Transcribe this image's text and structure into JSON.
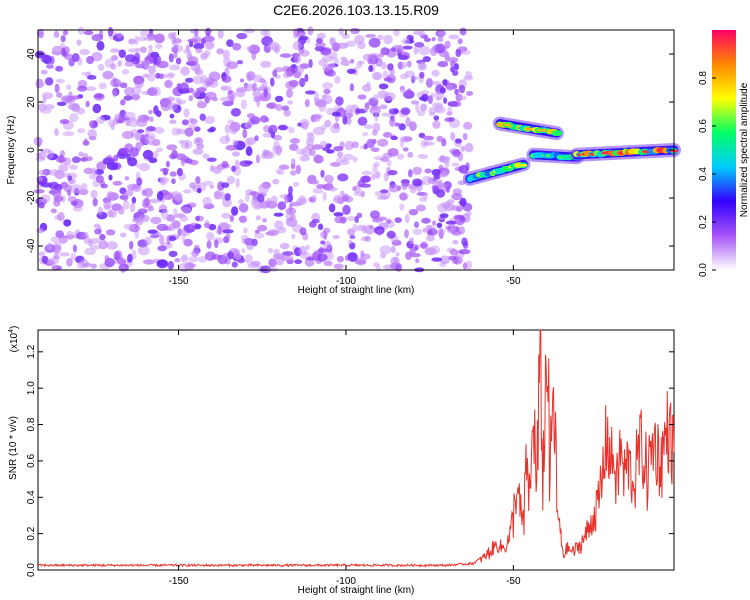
{
  "title": "C2E6.2026.103.13.15.R09",
  "chart_data": [
    {
      "type": "heatmap",
      "xlabel": "Height of straight line (km)",
      "ylabel": "Frequency (Hz)",
      "xlim": [
        -192,
        -2
      ],
      "ylim": [
        -50,
        50
      ],
      "xticks": [
        -150,
        -100,
        -50
      ],
      "yticks": [
        -40,
        -20,
        0,
        20,
        40
      ],
      "noise_region": [
        -192,
        -63
      ],
      "ridges": [
        {
          "from": [
            -63,
            -12
          ],
          "to": [
            -47,
            -6
          ],
          "peak": 0.7
        },
        {
          "from": [
            -54,
            11
          ],
          "to": [
            -37,
            7
          ],
          "peak": 0.8
        },
        {
          "from": [
            -44,
            -2
          ],
          "to": [
            -31,
            -3
          ],
          "peak": 0.6
        },
        {
          "from": [
            -31,
            -2
          ],
          "to": [
            -2,
            0
          ],
          "peak": 0.95
        }
      ],
      "colorbar": {
        "label": "Normalized spectral amplitude",
        "range": [
          0.0,
          1.0
        ],
        "ticks": [
          "0.0",
          "0.2",
          "0.4",
          "0.6",
          "0.8"
        ],
        "colors": [
          "#ffffff",
          "#a855f7",
          "#3300ff",
          "#00ccff",
          "#00ff66",
          "#ffff00",
          "#ff8800",
          "#ff0066"
        ]
      }
    },
    {
      "type": "line",
      "xlabel": "Height of straight line (km)",
      "ylabel": "SNR (10 * v/v)",
      "yunit": "(x10",
      "yexp": "4",
      "xlim": [
        -192,
        -2
      ],
      "ylim": [
        0,
        1.32
      ],
      "xticks": [
        -150,
        -100,
        -50
      ],
      "yticks": [
        "0.0",
        "0.2",
        "0.4",
        "0.6",
        "0.8",
        "1.0",
        "1.2"
      ],
      "color": "#e8322b",
      "series": [
        {
          "x": [
            -192,
            -150,
            -100,
            -70,
            -62,
            -58,
            -55,
            -53,
            -51,
            -50,
            -49,
            -47,
            -46,
            -45,
            -44,
            -43,
            -42,
            -41,
            -40,
            -39,
            -38,
            -37,
            -36,
            -35,
            -34,
            -32,
            -30,
            -28,
            -26,
            -24,
            -22,
            -21,
            -20,
            -19,
            -18,
            -17,
            -16,
            -14,
            -12,
            -10,
            -8,
            -6,
            -4,
            -2
          ],
          "y": [
            0.02,
            0.02,
            0.02,
            0.02,
            0.03,
            0.08,
            0.14,
            0.12,
            0.18,
            0.3,
            0.45,
            0.22,
            0.6,
            0.35,
            0.9,
            0.4,
            1.2,
            0.5,
            1.3,
            0.45,
            1.0,
            0.35,
            0.2,
            0.08,
            0.12,
            0.1,
            0.14,
            0.2,
            0.3,
            0.4,
            0.76,
            0.6,
            0.62,
            0.45,
            0.68,
            0.5,
            0.6,
            0.48,
            0.7,
            0.52,
            0.72,
            0.58,
            0.78,
            0.65
          ]
        }
      ]
    }
  ]
}
